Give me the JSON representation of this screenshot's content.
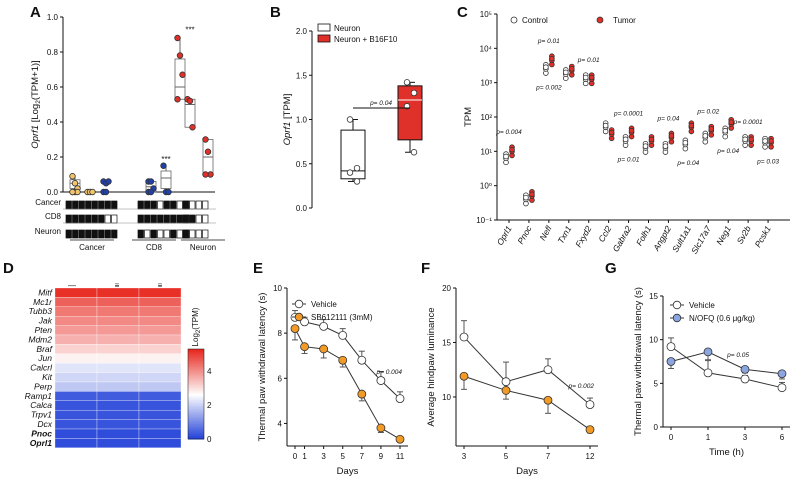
{
  "panel_labels": [
    "A",
    "B",
    "C",
    "D",
    "E",
    "F",
    "G"
  ],
  "chart_data": [
    {
      "panel": "A",
      "type": "scatter",
      "title": "",
      "ylabel": "Oprf1 [Log2(TPM+1)]",
      "ylim": [
        0,
        1.0
      ],
      "yticks": [
        "0.0",
        "0.2",
        "0.4",
        "0.6",
        "0.8",
        "1.0"
      ],
      "rows": [
        "Cancer",
        "CD8",
        "Neuron"
      ],
      "groups": [
        "Cancer",
        "CD8",
        "Neuron"
      ],
      "sig": "***",
      "colors": {
        "cancer": "#f2c46d",
        "cd8": "#2241a8",
        "neuron": "#e0302a"
      },
      "conditions": [
        {
          "group": "Cancer",
          "box": [
            0.0,
            0.02,
            0.05,
            0.07,
            0.09
          ],
          "points": [
            0.09,
            0.05,
            0.02,
            0.0,
            0.0,
            0.0,
            0.0
          ],
          "matrix": [
            1,
            1,
            1,
            1
          ],
          "color": "#f2c46d"
        },
        {
          "group": "Cancer",
          "box": null,
          "points": [
            0.0,
            0.0,
            0.0
          ],
          "matrix": [
            1,
            1,
            0,
            1
          ],
          "color": "#f2c46d"
        },
        {
          "group": "CD8",
          "box": null,
          "points": [
            0.06,
            0.05,
            0.06,
            0.0,
            0.0
          ],
          "matrix": [
            1,
            0,
            1,
            0
          ],
          "color": "#2241a8"
        },
        {
          "group": "CD8",
          "box": [
            0.0,
            0.0,
            0.03,
            0.06,
            0.06
          ],
          "points": [
            0.06,
            0.06,
            0.02,
            0.0,
            0.0
          ],
          "matrix": [
            0,
            1,
            0,
            0
          ],
          "color": "#2241a8"
        },
        {
          "group": "CD8",
          "box": [
            0.0,
            0.02,
            0.08,
            0.12,
            0.15
          ],
          "points": [
            0.15,
            0.0,
            0.0
          ],
          "matrix": [
            1,
            1,
            0,
            0
          ],
          "color": "#2241a8"
        },
        {
          "group": "Neuron",
          "box": [
            0.53,
            0.53,
            0.6,
            0.76,
            0.88
          ],
          "points": [
            0.88,
            0.78,
            0.67,
            0.53
          ],
          "matrix": [
            1,
            0,
            0,
            0
          ],
          "color": "#e0302a"
        },
        {
          "group": "Neuron",
          "box": [
            0.37,
            0.37,
            0.5,
            0.53,
            0.53
          ],
          "points": [
            0.53,
            0.52,
            0.37
          ],
          "matrix": [
            0,
            0,
            0,
            0
          ],
          "color": "#e0302a"
        },
        {
          "group": "Neuron",
          "box": [
            0.1,
            0.1,
            0.2,
            0.3,
            0.3
          ],
          "points": [
            0.3,
            0.23,
            0.1,
            0.1
          ],
          "matrix": [
            0,
            1,
            0,
            0
          ],
          "color": "#e0302a"
        }
      ]
    },
    {
      "panel": "B",
      "type": "box",
      "ylabel": "Oprf1 [TPM]",
      "ylim": [
        0,
        2.0
      ],
      "yticks": [
        "0.0",
        "0.5",
        "1.0",
        "1.5",
        "2.0"
      ],
      "legend": [
        "Neuron",
        "Neuron + B16F10"
      ],
      "pvalue": "p= 0.04",
      "series": [
        {
          "name": "Neuron",
          "whiskers": [
            0.3,
            1.0
          ],
          "q1": 0.33,
          "median": 0.42,
          "q3": 0.88,
          "points": [
            1.0,
            0.45,
            0.4,
            0.3
          ],
          "color": "#ffffff"
        },
        {
          "name": "Neuron + B16F10",
          "whiskers": [
            0.63,
            1.42
          ],
          "q1": 0.77,
          "median": 1.22,
          "q3": 1.38,
          "points": [
            1.42,
            1.3,
            1.15,
            0.63
          ],
          "color": "#e0302a"
        }
      ]
    },
    {
      "panel": "C",
      "type": "scatter",
      "ylabel": "TPM",
      "yscale": "log",
      "ylim_exp": [
        -1,
        5
      ],
      "yticks": [
        "10⁻¹",
        "10⁰",
        "10¹",
        "10²",
        "10³",
        "10⁴",
        "10⁵"
      ],
      "legend": [
        "Control",
        "Tumor"
      ],
      "categories": [
        "Oprl1",
        "Pnoc",
        "Nefl",
        "Txn1",
        "Fxyd2",
        "Ccl2",
        "Gabra2",
        "Folh1",
        "Angpt2",
        "Sult1a1",
        "Slc17a7",
        "Neg1",
        "Sv2b",
        "Pcsk1"
      ],
      "control_log10": [
        0.8,
        -0.4,
        3.4,
        3.25,
        3.1,
        1.7,
        1.3,
        1.1,
        1.1,
        1.2,
        1.4,
        1.55,
        1.3,
        1.25
      ],
      "tumor_log10": [
        1.0,
        -0.3,
        3.65,
        3.35,
        3.1,
        1.5,
        1.55,
        1.3,
        1.4,
        1.7,
        1.6,
        1.8,
        1.3,
        1.25
      ],
      "pvalues": [
        {
          "gene": "Oprl1",
          "p": "p= 0.004",
          "pos": "above"
        },
        {
          "gene": "Nefl",
          "p": "p= 0.01",
          "pos": "above"
        },
        {
          "gene": "Nefl",
          "p": "p= 0.002",
          "pos": "below"
        },
        {
          "gene": "Fxyd2",
          "p": "p= 0.01",
          "pos": "above"
        },
        {
          "gene": "Gabra2",
          "p": "p= 0.0001",
          "pos": "above"
        },
        {
          "gene": "Gabra2",
          "p": "p= 0.01",
          "pos": "below"
        },
        {
          "gene": "Angpt2",
          "p": "p= 0.04",
          "pos": "above"
        },
        {
          "gene": "Sult1a1",
          "p": "p= 0.04",
          "pos": "below"
        },
        {
          "gene": "Slc17a7",
          "p": "p= 0.02",
          "pos": "above"
        },
        {
          "gene": "Neg1",
          "p": "p= 0.04",
          "pos": "below"
        },
        {
          "gene": "Sv2b",
          "p": "p= 0.0001",
          "pos": "above"
        },
        {
          "gene": "Pcsk1",
          "p": "p= 0.03",
          "pos": "below"
        }
      ],
      "colors": {
        "control": "#ffffff",
        "tumor": "#e0302a"
      }
    },
    {
      "panel": "D",
      "type": "heatmap",
      "colorbar_label": "Log2(TPM)",
      "colorbar_ticks": [
        "0",
        "2",
        "4"
      ],
      "colorbar_range": [
        0,
        5.3
      ],
      "genes": [
        "Mitf",
        "Mc1r",
        "Tubb3",
        "Jak",
        "Pten",
        "Mdm2",
        "Braf",
        "Jun",
        "Calcrl",
        "Kit",
        "Perp",
        "Ramp1",
        "Calca",
        "Trpv1",
        "Dcx",
        "Pnoc",
        "Oprl1"
      ],
      "bold_genes": [
        "Pnoc",
        "Oprl1"
      ],
      "values": [
        5.2,
        4.6,
        4.3,
        4.1,
        3.9,
        3.6,
        3.2,
        2.8,
        2.3,
        2.1,
        1.9,
        0.4,
        0.3,
        0.3,
        0.3,
        0.2,
        0.2
      ]
    },
    {
      "panel": "E",
      "type": "line",
      "ylabel": "Thermal paw withdrawal latency (s)",
      "xlabel": "Days",
      "x": [
        0,
        1,
        3,
        5,
        7,
        9,
        11
      ],
      "ylim": [
        3,
        10
      ],
      "yticks": [
        "4",
        "6",
        "8",
        "10"
      ],
      "pvalue": "p= 0.004",
      "series": [
        {
          "name": "Vehicle",
          "values": [
            8.7,
            8.5,
            8.3,
            7.9,
            6.8,
            5.9,
            5.1
          ],
          "errors": [
            0.3,
            0.2,
            0.3,
            0.3,
            0.4,
            0.4,
            0.3
          ],
          "color": "#ffffff"
        },
        {
          "name": "SB612111 (3mM)",
          "values": [
            8.2,
            7.4,
            7.3,
            6.8,
            5.3,
            3.8,
            3.3
          ],
          "errors": [
            0.5,
            0.3,
            0.4,
            0.3,
            0.3,
            0.2,
            0.1
          ],
          "color": "#f29a26"
        }
      ]
    },
    {
      "panel": "F",
      "type": "line",
      "ylabel": "Average hindpaw luminance",
      "xlabel": "Days",
      "x": [
        "3",
        "5",
        "7",
        "12"
      ],
      "ylim": [
        5.5,
        20
      ],
      "yticks": [
        "10",
        "15",
        "20"
      ],
      "pvalue": "p= 0.002",
      "series": [
        {
          "name": "Vehicle",
          "values": [
            15.5,
            11.4,
            12.5,
            9.3
          ],
          "errors": [
            1.5,
            1.8,
            1.0,
            0.6
          ],
          "color": "#ffffff"
        },
        {
          "name": "SB612111",
          "values": [
            11.9,
            10.6,
            9.7,
            7.0
          ],
          "errors": [
            1.2,
            0.8,
            1.2,
            0.3
          ],
          "color": "#f29a26"
        }
      ]
    },
    {
      "panel": "G",
      "type": "line",
      "ylabel": "Thermal paw withdrawal latency (s)",
      "xlabel": "Time (h)",
      "x": [
        0,
        1,
        3,
        6
      ],
      "ylim": [
        0,
        15
      ],
      "yticks": [
        "0",
        "5",
        "10",
        "15"
      ],
      "pvalue": "p= 0.05",
      "series": [
        {
          "name": "Vehicle",
          "values": [
            9.2,
            6.2,
            5.5,
            4.5
          ],
          "errors": [
            1.0,
            1.5,
            0.4,
            0.6
          ],
          "color": "#ffffff"
        },
        {
          "name": "N/OFQ (0.6 μg/kg)",
          "values": [
            7.5,
            8.6,
            6.6,
            6.1
          ],
          "errors": [
            0.8,
            1.0,
            0.4,
            0.6
          ],
          "color": "#8aa5e0"
        }
      ]
    }
  ]
}
